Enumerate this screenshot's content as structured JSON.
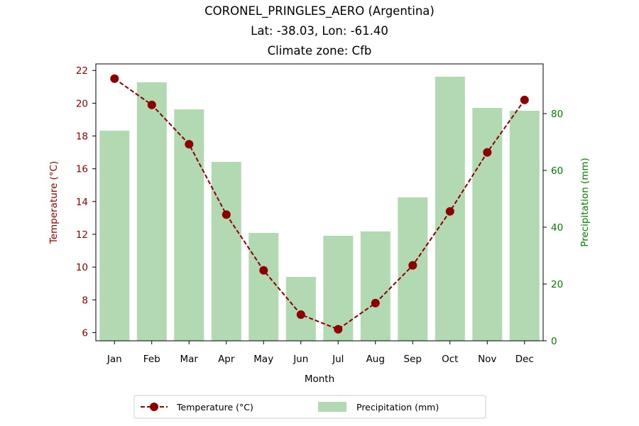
{
  "chart_data": {
    "type": "bar+line",
    "title_lines": [
      "CORONEL_PRINGLES_AERO (Argentina)",
      "Lat: -38.03, Lon: -61.40",
      "Climate zone: Cfb"
    ],
    "xlabel": "Month",
    "ylabel_left": "Temperature (°C)",
    "ylabel_right": "Precipitation (mm)",
    "categories": [
      "Jan",
      "Feb",
      "Mar",
      "Apr",
      "May",
      "Jun",
      "Jul",
      "Aug",
      "Sep",
      "Oct",
      "Nov",
      "Dec"
    ],
    "series": [
      {
        "name": "Temperature (°C)",
        "kind": "line",
        "axis": "left",
        "values": [
          21.5,
          19.9,
          17.5,
          13.2,
          9.8,
          7.1,
          6.2,
          7.8,
          10.1,
          13.4,
          17.0,
          20.2
        ]
      },
      {
        "name": "Precipitation (mm)",
        "kind": "bar",
        "axis": "right",
        "values": [
          74,
          91,
          81.5,
          63,
          38,
          22.5,
          37,
          38.5,
          50.5,
          93,
          82,
          81
        ]
      }
    ],
    "ylim_left": [
      5.5,
      22.4
    ],
    "yticks_left": [
      6,
      8,
      10,
      12,
      14,
      16,
      18,
      20,
      22
    ],
    "ylim_right": [
      0,
      97.5
    ],
    "yticks_right": [
      0,
      20,
      40,
      60,
      80
    ],
    "grid": false,
    "legend_position": "bottom-center",
    "colors": {
      "temperature": "#8b0000",
      "precipitation": "#b2d9b2",
      "right_axis": "#008000"
    }
  }
}
